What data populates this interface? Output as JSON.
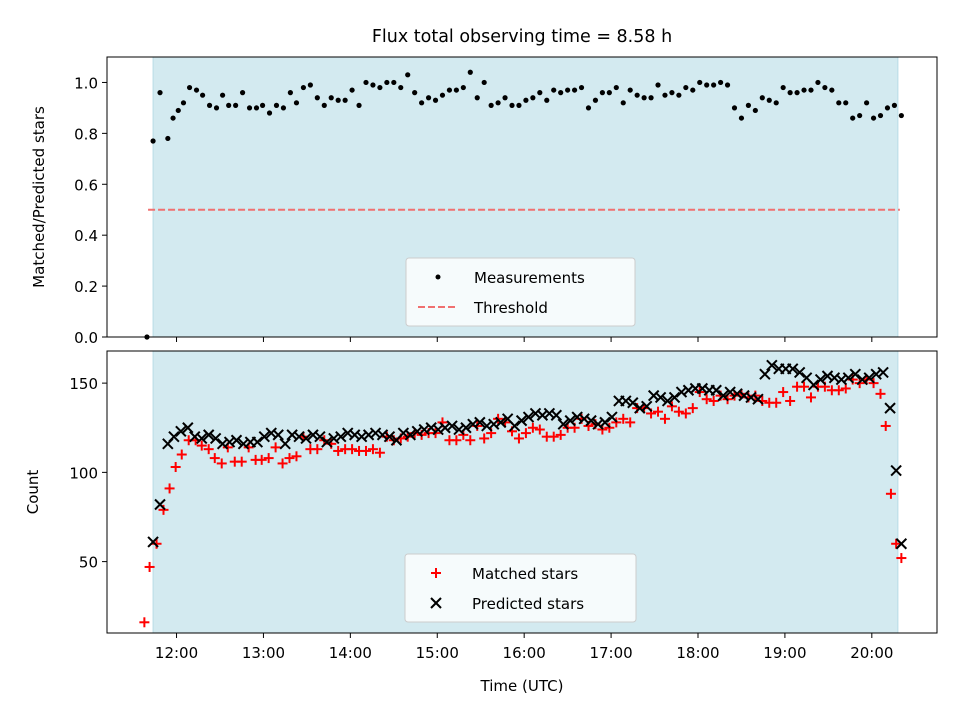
{
  "title": "Flux total observing time = 8.58 h",
  "colors": {
    "band": "#d3eaf0",
    "threshold": "#f07070",
    "matched": "#ff0000",
    "predicted": "#000000",
    "measurements": "#000000"
  },
  "chart_data": [
    {
      "type": "scatter",
      "ylabel": "Matched/Predicted stars",
      "ylim": [
        0.0,
        1.1
      ],
      "xlim_hours": [
        11.2,
        20.75
      ],
      "yticks": [
        0.0,
        0.2,
        0.4,
        0.6,
        0.8,
        1.0
      ],
      "ytick_labels": [
        "0.0",
        "0.2",
        "0.4",
        "0.6",
        "0.8",
        "1.0"
      ],
      "band_hours": [
        11.73,
        20.3
      ],
      "threshold": 0.5,
      "legend": [
        "Measurements",
        "Threshold"
      ],
      "legend_position": "lower center",
      "series": [
        {
          "name": "Measurements",
          "marker": "dot",
          "x_hours": [
            11.66,
            11.73,
            11.81,
            11.9,
            11.96,
            12.02,
            12.08,
            12.15,
            12.23,
            12.3,
            12.38,
            12.46,
            12.53,
            12.6,
            12.68,
            12.76,
            12.84,
            12.92,
            12.99,
            13.07,
            13.15,
            13.23,
            13.31,
            13.38,
            13.46,
            13.54,
            13.62,
            13.7,
            13.78,
            13.86,
            13.94,
            14.02,
            14.1,
            14.18,
            14.26,
            14.34,
            14.42,
            14.5,
            14.58,
            14.66,
            14.74,
            14.82,
            14.9,
            14.98,
            15.06,
            15.14,
            15.22,
            15.3,
            15.38,
            15.46,
            15.54,
            15.62,
            15.7,
            15.78,
            15.86,
            15.94,
            16.02,
            16.1,
            16.18,
            16.26,
            16.34,
            16.42,
            16.5,
            16.58,
            16.66,
            16.74,
            16.82,
            16.9,
            16.98,
            17.06,
            17.14,
            17.22,
            17.3,
            17.38,
            17.46,
            17.54,
            17.62,
            17.7,
            17.78,
            17.86,
            17.94,
            18.02,
            18.1,
            18.18,
            18.26,
            18.34,
            18.42,
            18.5,
            18.58,
            18.66,
            18.74,
            18.82,
            18.9,
            18.98,
            19.06,
            19.14,
            19.22,
            19.3,
            19.38,
            19.46,
            19.54,
            19.62,
            19.7,
            19.78,
            19.86,
            19.94,
            20.02,
            20.1,
            20.18,
            20.26,
            20.34
          ],
          "y": [
            0.0,
            0.77,
            0.96,
            0.78,
            0.86,
            0.89,
            0.92,
            0.98,
            0.97,
            0.95,
            0.91,
            0.9,
            0.95,
            0.91,
            0.91,
            0.96,
            0.9,
            0.9,
            0.91,
            0.88,
            0.91,
            0.9,
            0.96,
            0.92,
            0.98,
            0.99,
            0.94,
            0.91,
            0.94,
            0.93,
            0.93,
            0.97,
            0.91,
            1.0,
            0.99,
            0.98,
            1.0,
            1.0,
            0.98,
            1.03,
            0.96,
            0.92,
            0.94,
            0.93,
            0.95,
            0.97,
            0.97,
            0.98,
            1.04,
            0.94,
            1.0,
            0.91,
            0.92,
            0.94,
            0.91,
            0.91,
            0.93,
            0.94,
            0.96,
            0.93,
            0.97,
            0.96,
            0.97,
            0.97,
            0.98,
            0.9,
            0.93,
            0.96,
            0.96,
            0.98,
            0.92,
            0.97,
            0.95,
            0.94,
            0.94,
            0.99,
            0.95,
            0.96,
            0.95,
            0.98,
            0.97,
            1.0,
            0.99,
            0.99,
            1.0,
            0.99,
            0.9,
            0.86,
            0.91,
            0.89,
            0.94,
            0.93,
            0.92,
            0.98,
            0.96,
            0.96,
            0.97,
            0.97,
            1.0,
            0.98,
            0.97,
            0.92,
            0.92,
            0.86,
            0.87,
            0.92,
            0.86,
            0.87,
            0.9,
            0.91,
            0.87
          ]
        },
        {
          "name": "Threshold",
          "style": "dashed",
          "y_constant": 0.5
        }
      ]
    },
    {
      "type": "scatter",
      "xlabel": "Time (UTC)",
      "ylabel": "Count",
      "ylim": [
        10,
        168
      ],
      "xlim_hours": [
        11.2,
        20.75
      ],
      "xticks_hours": [
        12,
        13,
        14,
        15,
        16,
        17,
        18,
        19,
        20
      ],
      "xtick_labels": [
        "12:00",
        "13:00",
        "14:00",
        "15:00",
        "16:00",
        "17:00",
        "18:00",
        "19:00",
        "20:00"
      ],
      "yticks": [
        50,
        100,
        150
      ],
      "ytick_labels": [
        "50",
        "100",
        "150"
      ],
      "band_hours": [
        11.73,
        20.3
      ],
      "legend": [
        "Matched stars",
        "Predicted stars"
      ],
      "legend_position": "lower center",
      "series": [
        {
          "name": "Matched stars",
          "marker": "plus",
          "x_hours": [
            11.63,
            11.69,
            11.77,
            11.85,
            11.92,
            11.99,
            12.06,
            12.14,
            12.22,
            12.29,
            12.37,
            12.44,
            12.52,
            12.59,
            12.67,
            12.75,
            12.83,
            12.91,
            12.98,
            13.06,
            13.14,
            13.22,
            13.3,
            13.38,
            13.46,
            13.54,
            13.62,
            13.7,
            13.78,
            13.86,
            13.94,
            14.02,
            14.1,
            14.18,
            14.26,
            14.34,
            14.42,
            14.5,
            14.58,
            14.66,
            14.74,
            14.82,
            14.9,
            14.98,
            15.06,
            15.14,
            15.22,
            15.3,
            15.38,
            15.46,
            15.54,
            15.62,
            15.7,
            15.78,
            15.86,
            15.94,
            16.02,
            16.1,
            16.18,
            16.26,
            16.34,
            16.42,
            16.5,
            16.58,
            16.66,
            16.74,
            16.82,
            16.9,
            16.98,
            17.06,
            17.14,
            17.22,
            17.3,
            17.38,
            17.46,
            17.54,
            17.62,
            17.7,
            17.78,
            17.86,
            17.94,
            18.02,
            18.1,
            18.18,
            18.26,
            18.34,
            18.42,
            18.5,
            18.58,
            18.66,
            18.74,
            18.82,
            18.9,
            18.98,
            19.06,
            19.14,
            19.22,
            19.3,
            19.38,
            19.46,
            19.54,
            19.62,
            19.7,
            19.78,
            19.86,
            19.94,
            20.02,
            20.1,
            20.16,
            20.22,
            20.28,
            20.34
          ],
          "y": [
            16,
            47,
            60,
            79,
            91,
            103,
            110,
            118,
            118,
            115,
            113,
            108,
            105,
            114,
            106,
            106,
            114,
            107,
            107,
            108,
            114,
            105,
            108,
            109,
            120,
            113,
            113,
            118,
            116,
            112,
            113,
            113,
            112,
            112,
            113,
            111,
            120,
            118,
            119,
            120,
            122,
            121,
            122,
            122,
            128,
            118,
            118,
            121,
            118,
            126,
            119,
            122,
            130,
            128,
            123,
            119,
            122,
            125,
            124,
            120,
            120,
            121,
            125,
            125,
            130,
            126,
            127,
            124,
            125,
            128,
            130,
            128,
            136,
            136,
            133,
            134,
            130,
            137,
            134,
            133,
            136,
            145,
            141,
            140,
            143,
            141,
            143,
            144,
            142,
            143,
            140,
            139,
            139,
            145,
            140,
            148,
            148,
            142,
            148,
            148,
            146,
            146,
            147,
            152,
            150,
            152,
            150,
            144,
            126,
            88,
            60,
            52
          ]
        },
        {
          "name": "Predicted stars",
          "marker": "cross",
          "x_hours": [
            11.73,
            11.81,
            11.9,
            11.97,
            12.05,
            12.13,
            12.21,
            12.29,
            12.37,
            12.45,
            12.53,
            12.61,
            12.69,
            12.77,
            12.85,
            12.93,
            13.01,
            13.09,
            13.17,
            13.25,
            13.33,
            13.41,
            13.49,
            13.57,
            13.65,
            13.73,
            13.81,
            13.89,
            13.97,
            14.05,
            14.13,
            14.21,
            14.29,
            14.37,
            14.45,
            14.53,
            14.61,
            14.69,
            14.77,
            14.85,
            14.93,
            15.01,
            15.09,
            15.17,
            15.25,
            15.33,
            15.41,
            15.49,
            15.57,
            15.65,
            15.73,
            15.81,
            15.89,
            15.97,
            16.05,
            16.13,
            16.21,
            16.29,
            16.37,
            16.45,
            16.53,
            16.61,
            16.69,
            16.77,
            16.85,
            16.93,
            17.01,
            17.09,
            17.17,
            17.25,
            17.33,
            17.41,
            17.49,
            17.57,
            17.65,
            17.73,
            17.81,
            17.89,
            17.97,
            18.05,
            18.13,
            18.21,
            18.29,
            18.37,
            18.45,
            18.53,
            18.61,
            18.69,
            18.77,
            18.85,
            18.93,
            19.01,
            19.09,
            19.17,
            19.25,
            19.33,
            19.41,
            19.49,
            19.57,
            19.65,
            19.73,
            19.81,
            19.89,
            19.97,
            20.05,
            20.13,
            20.21,
            20.28,
            20.34
          ],
          "y": [
            61,
            82,
            116,
            120,
            123,
            125,
            120,
            119,
            121,
            119,
            116,
            117,
            118,
            116,
            117,
            117,
            120,
            122,
            121,
            116,
            121,
            120,
            119,
            121,
            120,
            117,
            119,
            120,
            122,
            121,
            120,
            121,
            122,
            121,
            120,
            118,
            122,
            121,
            123,
            124,
            125,
            124,
            125,
            126,
            124,
            125,
            127,
            128,
            126,
            127,
            128,
            130,
            126,
            129,
            131,
            133,
            132,
            133,
            132,
            127,
            129,
            131,
            130,
            129,
            127,
            128,
            131,
            140,
            140,
            139,
            136,
            137,
            143,
            142,
            140,
            142,
            145,
            146,
            147,
            147,
            146,
            146,
            143,
            145,
            144,
            143,
            142,
            141,
            155,
            160,
            158,
            158,
            158,
            156,
            153,
            149,
            152,
            154,
            153,
            152,
            153,
            155,
            152,
            153,
            155,
            156,
            136,
            101,
            60
          ]
        }
      ]
    }
  ],
  "axis_tick_labels_time": [
    "12:00",
    "13:00",
    "14:00",
    "15:00",
    "16:00",
    "17:00",
    "18:00",
    "19:00",
    "20:00"
  ]
}
